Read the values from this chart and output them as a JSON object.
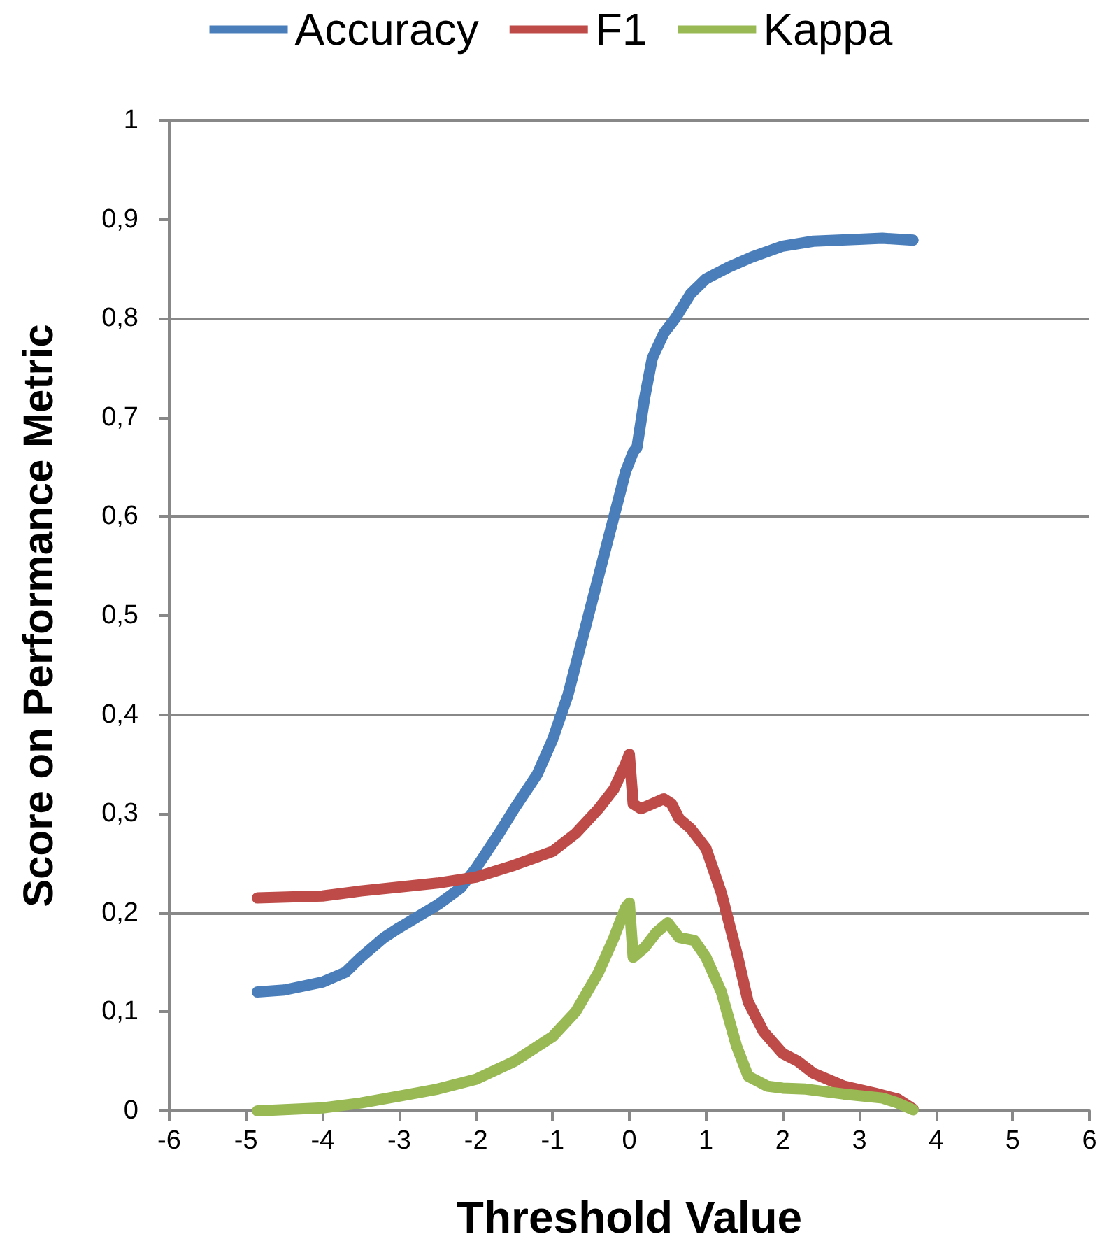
{
  "chart_data": {
    "type": "line",
    "xlabel": "Threshold Value",
    "ylabel": "Score on Performance Metric",
    "xlim": [
      -6,
      6
    ],
    "xticks": [
      -6,
      -5,
      -4,
      -3,
      -2,
      -1,
      0,
      1,
      2,
      3,
      4,
      5,
      6
    ],
    "ylim": [
      0,
      1
    ],
    "yticks": [
      0,
      {
        "value": 0.1,
        "label": "0,1"
      },
      {
        "value": 0.2,
        "label": "0,2"
      },
      {
        "value": 0.3,
        "label": "0,3"
      },
      {
        "value": 0.4,
        "label": "0,4"
      },
      {
        "value": 0.5,
        "label": "0,5"
      },
      {
        "value": 0.6,
        "label": "0,6"
      },
      {
        "value": 0.7,
        "label": "0,7"
      },
      {
        "value": 0.8,
        "label": "0,8"
      },
      {
        "value": 0.9,
        "label": "0,9"
      },
      1
    ],
    "grid": "y",
    "legend": "top",
    "marker": "none",
    "line_style": "solid",
    "series": [
      {
        "name": "Accuracy",
        "color": "#4a7ebb",
        "x": [
          -4.85,
          -4.5,
          -4,
          -3.7,
          -3.5,
          -3.2,
          -3,
          -2.5,
          -2.2,
          -2,
          -1.7,
          -1.5,
          -1.2,
          -1,
          -0.8,
          -0.6,
          -0.4,
          -0.2,
          -0.05,
          0,
          0.05,
          0.1,
          0.2,
          0.3,
          0.45,
          0.6,
          0.8,
          1,
          1.3,
          1.6,
          2,
          2.4,
          3,
          3.3,
          3.7
        ],
        "values": [
          0.12,
          0.122,
          0.13,
          0.14,
          0.155,
          0.175,
          0.185,
          0.208,
          0.225,
          0.245,
          0.28,
          0.305,
          0.34,
          0.375,
          0.42,
          0.48,
          0.54,
          0.6,
          0.645,
          0.655,
          0.665,
          0.67,
          0.72,
          0.76,
          0.785,
          0.8,
          0.825,
          0.84,
          0.852,
          0.862,
          0.873,
          0.878,
          0.88,
          0.881,
          0.879
        ]
      },
      {
        "name": "F1",
        "color": "#be4b48",
        "x": [
          -4.85,
          -4,
          -3.5,
          -3,
          -2.5,
          -2,
          -1.5,
          -1,
          -0.7,
          -0.4,
          -0.2,
          -0.05,
          0,
          0.05,
          0.15,
          0.3,
          0.45,
          0.55,
          0.65,
          0.8,
          1,
          1.2,
          1.4,
          1.55,
          1.75,
          2,
          2.2,
          2.4,
          2.8,
          3.2,
          3.5,
          3.7
        ],
        "values": [
          0.215,
          0.217,
          0.222,
          0.226,
          0.23,
          0.236,
          0.248,
          0.262,
          0.28,
          0.305,
          0.325,
          0.35,
          0.36,
          0.31,
          0.305,
          0.31,
          0.315,
          0.31,
          0.295,
          0.285,
          0.265,
          0.22,
          0.16,
          0.11,
          0.08,
          0.058,
          0.05,
          0.038,
          0.025,
          0.018,
          0.012,
          0.002
        ]
      },
      {
        "name": "Kappa",
        "color": "#98b954",
        "x": [
          -4.85,
          -4,
          -3.5,
          -3,
          -2.5,
          -2,
          -1.5,
          -1,
          -0.7,
          -0.4,
          -0.2,
          -0.05,
          0,
          0.05,
          0.2,
          0.35,
          0.5,
          0.65,
          0.85,
          1,
          1.2,
          1.4,
          1.55,
          1.8,
          2,
          2.3,
          2.8,
          3.3,
          3.5,
          3.7
        ],
        "values": [
          0.0,
          0.003,
          0.008,
          0.015,
          0.022,
          0.032,
          0.05,
          0.075,
          0.1,
          0.14,
          0.175,
          0.205,
          0.21,
          0.155,
          0.165,
          0.18,
          0.19,
          0.175,
          0.172,
          0.155,
          0.12,
          0.065,
          0.035,
          0.025,
          0.023,
          0.022,
          0.017,
          0.013,
          0.008,
          0.001
        ]
      }
    ]
  }
}
